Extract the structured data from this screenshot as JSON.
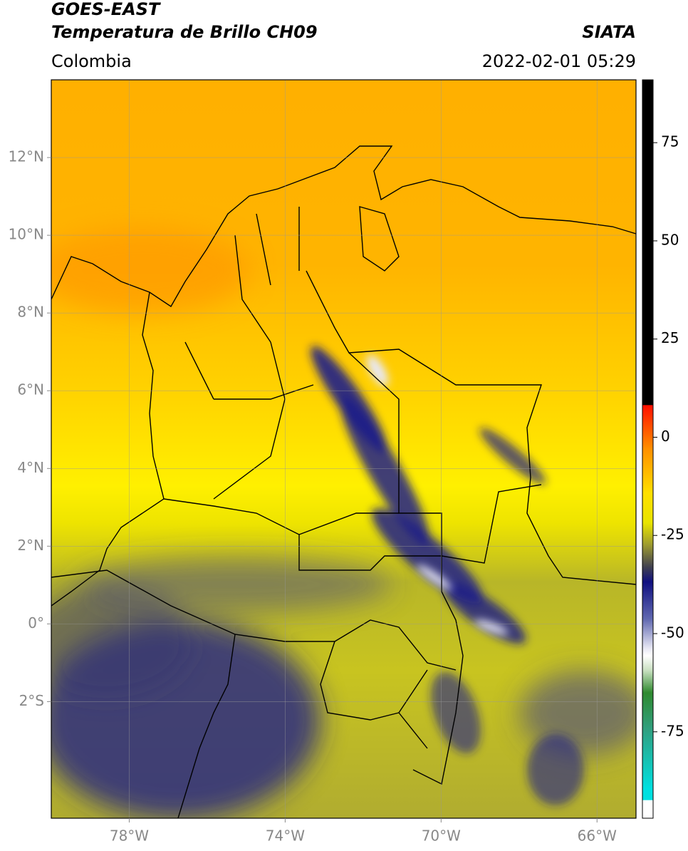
{
  "header": {
    "title": "GOES-EAST",
    "subtitle": "Temperatura de Brillo CH09",
    "source": "SIATA",
    "region": "Colombia",
    "datetime": "2022-02-01 05:29"
  },
  "map": {
    "xlim": [
      -80,
      -65
    ],
    "ylim": [
      -5,
      14
    ],
    "xticks": [
      {
        "value": -78,
        "label": "78°W"
      },
      {
        "value": -74,
        "label": "74°W"
      },
      {
        "value": -70,
        "label": "70°W"
      },
      {
        "value": -66,
        "label": "66°W"
      }
    ],
    "yticks": [
      {
        "value": 12,
        "label": "12°N"
      },
      {
        "value": 10,
        "label": "10°N"
      },
      {
        "value": 8,
        "label": "8°N"
      },
      {
        "value": 6,
        "label": "6°N"
      },
      {
        "value": 4,
        "label": "4°N"
      },
      {
        "value": 2,
        "label": "2°N"
      },
      {
        "value": 0,
        "label": "0°"
      },
      {
        "value": -2,
        "label": "2°S"
      }
    ],
    "grid": true
  },
  "colorbar": {
    "lim": [
      -97,
      91
    ],
    "ticks": [
      75,
      50,
      25,
      0,
      -25,
      -50,
      -75
    ]
  }
}
